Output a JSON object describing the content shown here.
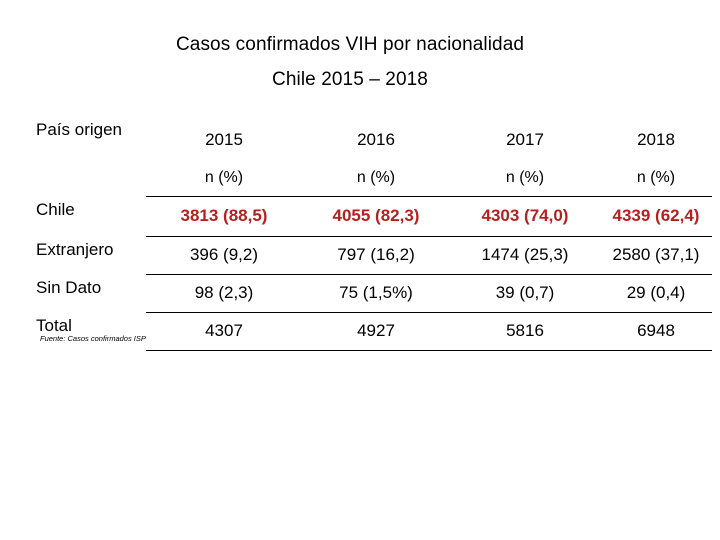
{
  "title": "Casos confirmados VIH por nacionalidad",
  "subtitle": "Chile 2015 – 2018",
  "table": {
    "row_header": "País origen",
    "years": [
      "2015",
      "2016",
      "2017",
      "2018"
    ],
    "units": [
      "n (%)",
      "n (%)",
      "n (%)",
      "n (%)"
    ],
    "rows": [
      {
        "label": "Chile",
        "values": [
          "3813 (88,5)",
          "4055 (82,3)",
          "4303 (74,0)",
          "4339 (62,4)"
        ]
      },
      {
        "label": "Extranjero",
        "values": [
          "396 (9,2)",
          "797 (16,2)",
          "1474 (25,3)",
          "2580 (37,1)"
        ]
      },
      {
        "label": "Sin Dato",
        "values": [
          "98 (2,3)",
          "75 (1,5%)",
          "39 (0,7)",
          "29 (0,4)"
        ]
      },
      {
        "label": "Total",
        "values": [
          "4307",
          "4927",
          "5816",
          "6948"
        ]
      }
    ]
  },
  "source": "Fuente: Casos confirmados ISP",
  "colors": {
    "highlight": "#b81f1f",
    "text": "#000000"
  }
}
